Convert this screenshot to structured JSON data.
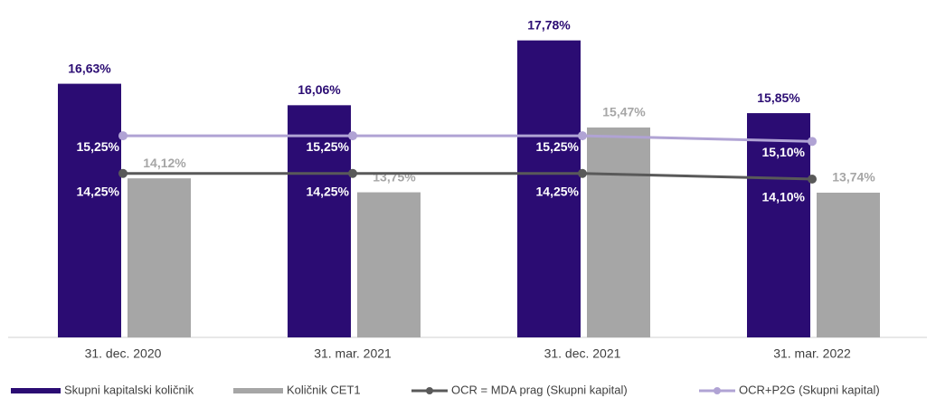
{
  "chart_data": {
    "type": "bar",
    "categories": [
      "31. dec. 2020",
      "31. mar. 2021",
      "31. dec. 2021",
      "31. mar. 2022"
    ],
    "series": [
      {
        "name": "Skupni kapitalski količnik",
        "type": "bar",
        "color": "#2b0c73",
        "label_color": "#2b0c73",
        "values": [
          16.63,
          16.06,
          17.78,
          15.85
        ],
        "value_labels": [
          "16,63%",
          "16,06%",
          "17,78%",
          "15,85%"
        ]
      },
      {
        "name": "Količnik CET1",
        "type": "bar",
        "color": "#a6a6a6",
        "label_color": "#a6a6a6",
        "values": [
          14.12,
          13.75,
          15.47,
          13.74
        ],
        "value_labels": [
          "14,12%",
          "13,75%",
          "15,47%",
          "13,74%"
        ]
      },
      {
        "name": "OCR = MDA prag (Skupni kapital)",
        "type": "line",
        "color": "#595959",
        "label_color": "#ffffff",
        "values": [
          14.25,
          14.25,
          14.25,
          14.1
        ],
        "value_labels": [
          "14,25%",
          "14,25%",
          "14,25%",
          "14,10%"
        ]
      },
      {
        "name": "OCR+P2G (Skupni kapital)",
        "type": "line",
        "color": "#b0a3d4",
        "label_color": "#ffffff",
        "values": [
          15.25,
          15.25,
          15.25,
          15.1
        ],
        "value_labels": [
          "15,25%",
          "15,25%",
          "15,25%",
          "15,10%"
        ]
      }
    ],
    "ylim": [
      9.9,
      18.3
    ],
    "legend": "bottom"
  }
}
